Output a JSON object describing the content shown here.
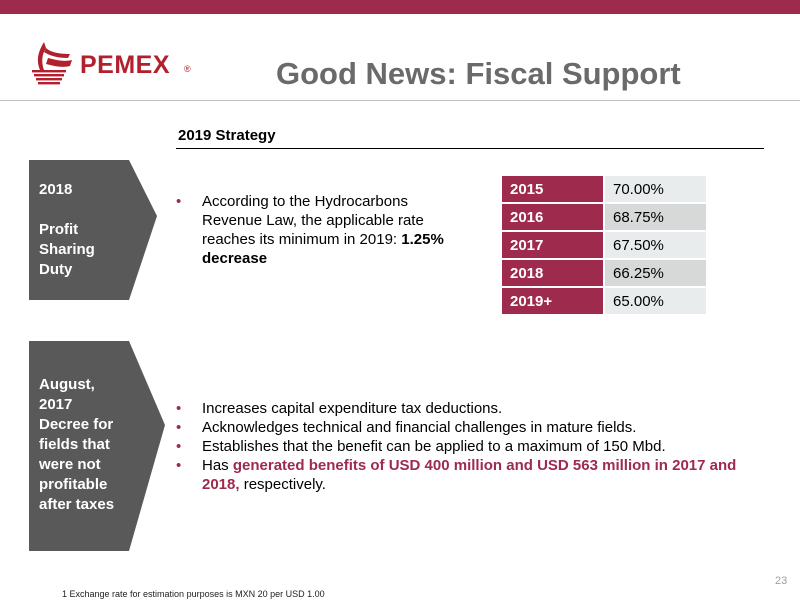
{
  "brand": {
    "name": "PEMEX",
    "registered": "®"
  },
  "title": "Good News: Fiscal Support",
  "strategy_heading": "2019 Strategy",
  "sections": [
    {
      "label": "2018\n\nProfit\nSharing\nDuty",
      "bullets": [
        {
          "text": "According to the Hydrocarbons Revenue Law, the applicable rate reaches its minimum in 2019: ",
          "emphasis": "1.25% decrease"
        }
      ]
    },
    {
      "label": "August,\n2017\nDecree for\nfields that\nwere not\nprofitable\nafter taxes",
      "bullets": [
        {
          "text": "Increases capital expenditure tax deductions."
        },
        {
          "text": "Acknowledges technical and financial challenges in mature fields."
        },
        {
          "text": "Establishes that the benefit can be applied to a maximum of 150 Mbd."
        },
        {
          "prefix": "Has ",
          "highlight": "generated benefits of USD 400 million and USD 563 million in 2017 and 2018,",
          "suffix": " respectively."
        }
      ]
    }
  ],
  "rate_table": [
    {
      "year": "2015",
      "rate": "70.00%"
    },
    {
      "year": "2016",
      "rate": "68.75%"
    },
    {
      "year": "2017",
      "rate": "67.50%"
    },
    {
      "year": "2018",
      "rate": "66.25%"
    },
    {
      "year": "2019+",
      "rate": "65.00%"
    }
  ],
  "page_number": "23",
  "footnote": "1    Exchange rate for estimation purposes is MXN 20 per USD 1.00",
  "colors": {
    "accent": "#9e2a4e",
    "label_bg": "#595959",
    "title": "#6a6a6a",
    "logo": "#b21f2d"
  }
}
